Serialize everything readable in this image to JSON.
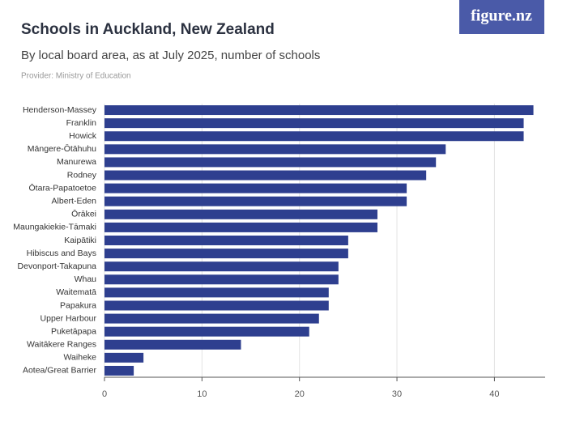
{
  "logo": "figure.nz",
  "chart_data": {
    "type": "bar",
    "orientation": "horizontal",
    "title": "Schools in Auckland, New Zealand",
    "subtitle": "By local board area, as at July 2025, number of schools",
    "source": "Provider: Ministry of Education",
    "categories": [
      "Henderson-Massey",
      "Franklin",
      "Howick",
      "Māngere-Ōtāhuhu",
      "Manurewa",
      "Rodney",
      "Ōtara-Papatoetoe",
      "Albert-Eden",
      "Ōrākei",
      "Maungakiekie-Tāmaki",
      "Kaipātiki",
      "Hibiscus and Bays",
      "Devonport-Takapuna",
      "Whau",
      "Waitematā",
      "Papakura",
      "Upper Harbour",
      "Puketāpapa",
      "Waitākere Ranges",
      "Waiheke",
      "Aotea/Great Barrier"
    ],
    "values": [
      44,
      43,
      43,
      35,
      34,
      33,
      31,
      31,
      28,
      28,
      25,
      25,
      24,
      24,
      23,
      23,
      22,
      21,
      14,
      4,
      3
    ],
    "color": "#2e3f8f",
    "xlim": [
      0,
      45.2
    ],
    "xticks": [
      0,
      10,
      20,
      30,
      40
    ],
    "grid": true
  }
}
